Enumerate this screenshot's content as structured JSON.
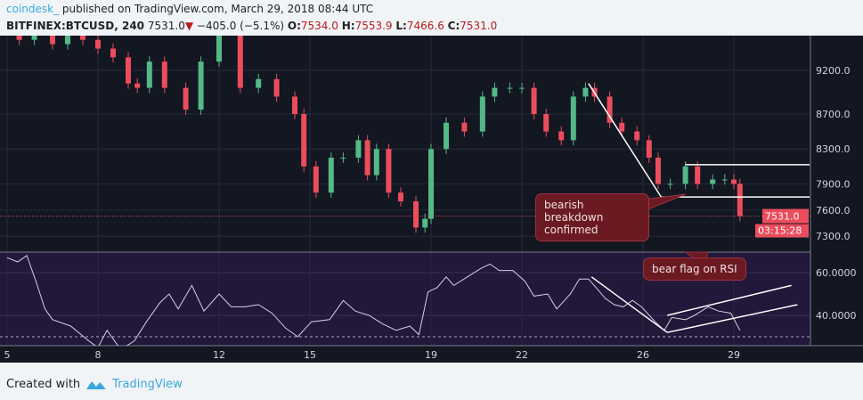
{
  "header": {
    "user": "coindesk_",
    "published": "published on TradingView.com, March 29, 2018 08:44 UTC",
    "symbol": "BITFINEX:BTCUSD, 240",
    "last": "7531.0",
    "change": "−405.0 (−5.1%)",
    "o_label": "O:",
    "o": "7534.0",
    "h_label": "H:",
    "h": "7553.9",
    "l_label": "L:",
    "l": "7466.6",
    "c_label": "C:",
    "c": "7531.0"
  },
  "footer": {
    "created_with": "Created with",
    "brand": "TradingView"
  },
  "annotations": {
    "price_callout": "bearish breakdown confirmed",
    "rsi_callout": "bear flag on RSI"
  },
  "colors": {
    "up": "#53b987",
    "down": "#eb4d5c",
    "background": "#131722",
    "rsi_background": "#21183a",
    "rsi_line": "#d6d0e6",
    "accent": "#3aa7e0"
  },
  "chart_data": [
    {
      "type": "candlestick",
      "title": "BITFINEX:BTCUSD, 240",
      "ylim": [
        7100,
        9600
      ],
      "yticks": [
        "9200.0",
        "8700.0",
        "8300.0",
        "7900.0",
        "7600.0",
        "7300.0"
      ],
      "last_price_label": "7531.0",
      "countdown_label": "03:15:28",
      "x": [
        5.4,
        5.9,
        6.5,
        7.0,
        7.5,
        8.0,
        8.5,
        9.0,
        9.3,
        9.7,
        10.2,
        10.9,
        11.4,
        12.0,
        12.7,
        13.3,
        13.9,
        14.5,
        14.8,
        15.2,
        15.7,
        16.1,
        16.6,
        16.9,
        17.2,
        17.6,
        18.0,
        18.5,
        18.8,
        19.0,
        19.5,
        20.1,
        20.7,
        21.1,
        21.6,
        22.0,
        22.4,
        22.8,
        23.3,
        23.7,
        24.1,
        24.4,
        24.9,
        25.3,
        25.8,
        26.2,
        26.5,
        26.9,
        27.4,
        27.8,
        28.3,
        28.7,
        29.0,
        29.2
      ],
      "close": [
        9550,
        9650,
        9500,
        9700,
        9550,
        9450,
        9350,
        9050,
        9000,
        9300,
        9000,
        8750,
        9300,
        9600,
        9000,
        9100,
        8900,
        8700,
        8100,
        7800,
        8200,
        8200,
        8400,
        8000,
        8300,
        7800,
        7700,
        7400,
        7500,
        8300,
        8600,
        8500,
        8900,
        9000,
        9000,
        9000,
        8700,
        8500,
        8400,
        8900,
        9000,
        8900,
        8600,
        8500,
        8400,
        8200,
        7900,
        7900,
        8100,
        7900,
        7950,
        7950,
        7900,
        7531
      ],
      "trendlines": [
        {
          "from": [
            24.2,
            9050
          ],
          "to": [
            26.6,
            7750
          ]
        },
        {
          "from": [
            26.6,
            7750
          ],
          "to": [
            31.5,
            7750
          ]
        },
        {
          "from": [
            27.4,
            8120
          ],
          "to": [
            31.5,
            8120
          ]
        }
      ]
    },
    {
      "type": "line",
      "title": "RSI",
      "ylim": [
        26,
        70
      ],
      "yticks": [
        "60.0000",
        "40.0000"
      ],
      "oversold": 30,
      "x": [
        5.0,
        5.35,
        5.65,
        5.95,
        6.25,
        6.5,
        7.1,
        7.7,
        8.0,
        8.3,
        8.75,
        9.2,
        9.6,
        10.05,
        10.35,
        10.65,
        11.1,
        11.5,
        12.0,
        12.4,
        12.85,
        13.3,
        13.75,
        14.2,
        14.6,
        15.05,
        15.65,
        16.1,
        16.5,
        16.95,
        17.4,
        17.85,
        18.3,
        18.6,
        18.9,
        19.2,
        19.5,
        19.75,
        20.2,
        20.65,
        20.95,
        21.25,
        21.7,
        22.1,
        22.4,
        22.85,
        23.15,
        23.6,
        23.9,
        24.2,
        24.45,
        24.75,
        25.05,
        25.35,
        25.65,
        25.95,
        26.4,
        26.7,
        26.95,
        27.4,
        27.7,
        28.15,
        28.5,
        28.9,
        29.2
      ],
      "values": [
        67,
        65,
        68,
        56,
        43,
        38,
        35,
        28,
        25,
        33,
        24,
        28,
        37,
        46,
        50,
        43,
        54,
        42,
        50,
        44,
        44,
        45,
        41,
        34,
        30,
        37,
        38,
        47,
        42,
        40,
        36,
        33,
        35,
        31,
        51,
        53,
        58,
        54,
        58,
        62,
        64,
        61,
        61,
        56,
        49,
        50,
        43,
        50,
        57,
        57,
        53,
        48,
        45,
        44,
        47,
        44,
        37,
        33,
        39,
        38,
        40,
        44,
        42,
        41,
        33
      ],
      "trendlines": [
        {
          "from": [
            24.3,
            58
          ],
          "to": [
            26.8,
            32
          ]
        },
        {
          "from": [
            26.8,
            32
          ],
          "to": [
            31.1,
            45
          ]
        },
        {
          "from": [
            26.8,
            40
          ],
          "to": [
            30.9,
            54
          ]
        }
      ]
    }
  ],
  "xaxis": {
    "ticks": [
      {
        "day": 5,
        "label": "5"
      },
      {
        "day": 8,
        "label": "8"
      },
      {
        "day": 12,
        "label": "12"
      },
      {
        "day": 15,
        "label": "15"
      },
      {
        "day": 19,
        "label": "19"
      },
      {
        "day": 22,
        "label": "22"
      },
      {
        "day": 26,
        "label": "26"
      },
      {
        "day": 29,
        "label": "29"
      }
    ]
  }
}
